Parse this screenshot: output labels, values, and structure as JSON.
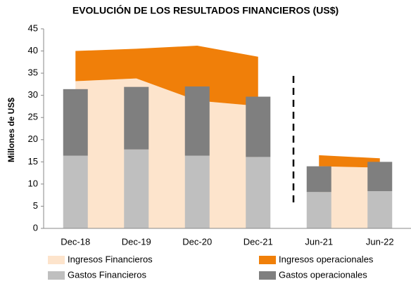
{
  "chart_data": {
    "type": "combo",
    "title": "EVOLUCIÓN DE LOS RESULTADOS FINANCIEROS (US$)",
    "y_label": "Millones de US$",
    "categories": [
      "Dec-18",
      "Dec-19",
      "Dec-20",
      "Dec-21",
      "Jun-21",
      "Jun-22"
    ],
    "series": [
      {
        "name": "Ingresos Financieros",
        "type": "area",
        "color": "#fde4cc",
        "values": [
          33.2,
          33.8,
          28.8,
          27.6,
          14.0,
          13.7
        ]
      },
      {
        "name": "Ingresos operacionales",
        "type": "area",
        "color": "#f07f09",
        "values": [
          6.8,
          6.7,
          12.4,
          11.1,
          2.5,
          2.1
        ]
      },
      {
        "name": "Gastos Financieros",
        "type": "bar",
        "color": "#bfbfbf",
        "values": [
          16.4,
          17.8,
          16.4,
          16.1,
          8.2,
          8.4
        ]
      },
      {
        "name": "Gastos operacionales",
        "type": "bar",
        "color": "#7f7f7f",
        "values": [
          15.0,
          14.1,
          15.6,
          13.6,
          5.8,
          6.6
        ]
      }
    ],
    "ylim": [
      0,
      45
    ],
    "yticks": [
      0,
      5,
      10,
      15,
      20,
      25,
      30,
      35,
      40,
      45
    ]
  }
}
